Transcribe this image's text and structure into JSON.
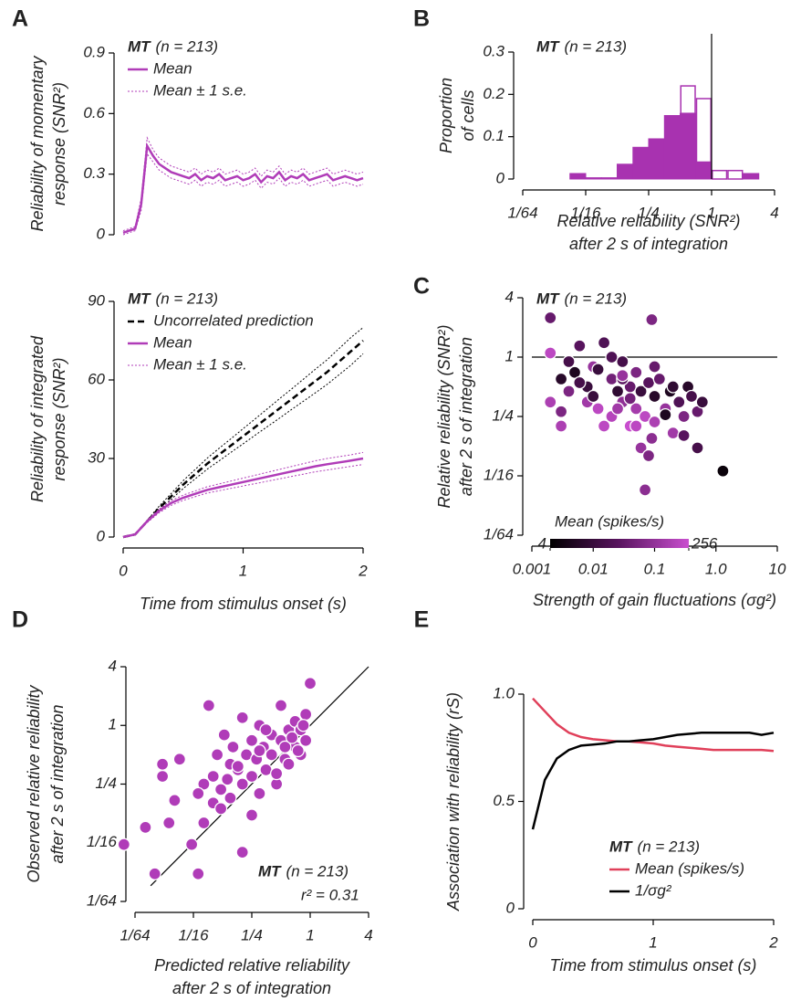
{
  "chart_data": [
    {
      "type": "line",
      "panel": "A",
      "group": "MT",
      "n_label": "(n = 213)",
      "y_label": [
        "Reliability of momentary",
        "response (SNR²)"
      ],
      "xlim": [
        0,
        2
      ],
      "ylim": [
        0,
        0.9
      ],
      "yticks": [
        0,
        0.3,
        0.6,
        0.9
      ],
      "x": [
        0,
        0.05,
        0.1,
        0.15,
        0.2,
        0.25,
        0.3,
        0.35,
        0.4,
        0.45,
        0.5,
        0.55,
        0.6,
        0.65,
        0.7,
        0.75,
        0.8,
        0.85,
        0.9,
        0.95,
        1,
        1.05,
        1.1,
        1.15,
        1.2,
        1.25,
        1.3,
        1.35,
        1.4,
        1.45,
        1.5,
        1.55,
        1.6,
        1.65,
        1.7,
        1.75,
        1.8,
        1.85,
        1.9,
        1.95,
        2
      ],
      "series": [
        {
          "name": "Mean",
          "color": "#b03cb8",
          "linestyle": "solid",
          "values": [
            0.01,
            0.02,
            0.03,
            0.15,
            0.44,
            0.39,
            0.35,
            0.33,
            0.31,
            0.3,
            0.29,
            0.28,
            0.3,
            0.27,
            0.29,
            0.28,
            0.3,
            0.27,
            0.28,
            0.29,
            0.27,
            0.28,
            0.3,
            0.26,
            0.29,
            0.28,
            0.31,
            0.27,
            0.29,
            0.28,
            0.3,
            0.27,
            0.28,
            0.29,
            0.3,
            0.27,
            0.28,
            0.29,
            0.28,
            0.27,
            0.28
          ]
        },
        {
          "name": "Mean ± 1 s.e.",
          "color": "#b03cb8",
          "linestyle": "dotted",
          "lower": [
            0.0,
            0.01,
            0.02,
            0.12,
            0.4,
            0.36,
            0.32,
            0.3,
            0.28,
            0.27,
            0.26,
            0.25,
            0.27,
            0.24,
            0.26,
            0.25,
            0.27,
            0.24,
            0.25,
            0.26,
            0.24,
            0.25,
            0.27,
            0.23,
            0.26,
            0.25,
            0.28,
            0.24,
            0.26,
            0.25,
            0.27,
            0.24,
            0.25,
            0.26,
            0.27,
            0.24,
            0.25,
            0.26,
            0.25,
            0.24,
            0.25
          ],
          "upper": [
            0.02,
            0.03,
            0.04,
            0.18,
            0.48,
            0.42,
            0.38,
            0.36,
            0.34,
            0.33,
            0.32,
            0.31,
            0.33,
            0.3,
            0.32,
            0.31,
            0.33,
            0.3,
            0.31,
            0.32,
            0.3,
            0.31,
            0.33,
            0.29,
            0.32,
            0.31,
            0.34,
            0.3,
            0.32,
            0.31,
            0.33,
            0.3,
            0.31,
            0.32,
            0.33,
            0.3,
            0.31,
            0.32,
            0.31,
            0.3,
            0.31
          ]
        }
      ]
    },
    {
      "type": "line",
      "group": "MT",
      "n_label": "(n = 213)",
      "y_label": [
        "Reliability of integrated",
        "response (SNR²)"
      ],
      "x_label": [
        "Time from stimulus onset (s)"
      ],
      "xlim": [
        0,
        2
      ],
      "ylim": [
        0,
        90
      ],
      "xticks": [
        0,
        1,
        2
      ],
      "yticks": [
        0,
        30,
        60,
        90
      ],
      "x": [
        0,
        0.1,
        0.2,
        0.3,
        0.4,
        0.5,
        0.6,
        0.7,
        0.8,
        0.9,
        1,
        1.1,
        1.2,
        1.3,
        1.4,
        1.5,
        1.6,
        1.7,
        1.8,
        1.9,
        2
      ],
      "series": [
        {
          "name": "Uncorrelated prediction",
          "color": "#000000",
          "linestyle": "dashed",
          "bound_linestyle": "dotted",
          "values": [
            0,
            1,
            6,
            11,
            15.5,
            20,
            24,
            28,
            31.5,
            35,
            38.5,
            42,
            45.5,
            49,
            52.5,
            56,
            59.5,
            63,
            67,
            71,
            75
          ],
          "lower": [
            0,
            0.9,
            5.6,
            10.2,
            14.4,
            18.5,
            22.2,
            25.9,
            29.1,
            32.4,
            35.6,
            38.9,
            42.1,
            45.3,
            48.6,
            51.8,
            55,
            58.3,
            62,
            65.7,
            70
          ],
          "upper": [
            0,
            1.1,
            6.4,
            11.8,
            16.6,
            21.5,
            25.8,
            30.1,
            33.9,
            37.6,
            41.4,
            45.1,
            48.9,
            52.7,
            56.4,
            60.2,
            64,
            67.7,
            72,
            76.3,
            80
          ]
        },
        {
          "name": "Mean",
          "color": "#b03cb8",
          "linestyle": "solid",
          "values": [
            0,
            1,
            6,
            10,
            13,
            15,
            16.5,
            18,
            19,
            20,
            21,
            22,
            23,
            24,
            25,
            26,
            27,
            27.8,
            28.5,
            29.2,
            30
          ]
        },
        {
          "name": "Mean ± 1 s.e.",
          "color": "#b03cb8",
          "linestyle": "dotted",
          "lower": [
            0,
            0.9,
            5.5,
            9.3,
            12.1,
            14,
            15.4,
            16.8,
            17.7,
            18.6,
            19.5,
            20.4,
            21.3,
            22.2,
            23.1,
            24,
            24.9,
            25.6,
            26.3,
            27,
            27.7
          ],
          "upper": [
            0,
            1.1,
            6.5,
            10.7,
            13.9,
            16,
            17.6,
            19.2,
            20.3,
            21.4,
            22.5,
            23.6,
            24.7,
            25.8,
            26.9,
            28,
            29.1,
            30,
            30.7,
            31.4,
            32.3
          ]
        }
      ]
    },
    {
      "type": "histogram",
      "panel": "B",
      "group": "MT",
      "n_label": "(n = 213)",
      "y_label": [
        "Proportion",
        "of cells"
      ],
      "x_label": [
        "Relative reliability (SNR²)",
        "after 2 s of integration"
      ],
      "xscale": "log",
      "xlim": [
        0.015625,
        4
      ],
      "ylim": [
        0,
        0.3
      ],
      "xticks": [
        {
          "value": 0.015625,
          "label": "1/64"
        },
        {
          "value": 0.0625,
          "label": "1/16"
        },
        {
          "value": 0.25,
          "label": "1/4"
        },
        1,
        4
      ],
      "yticks": [
        0,
        0.1,
        0.2,
        0.3
      ],
      "color": "#a832b0",
      "vline": 1,
      "bins": [
        0.0442,
        0.0625,
        0.0884,
        0.125,
        0.177,
        0.25,
        0.354,
        0.5,
        0.707,
        1,
        1.414,
        2,
        2.828,
        4
      ],
      "values": [
        0.013,
        0.003,
        0.003,
        0.035,
        0.075,
        0.095,
        0.15,
        0.155,
        0.04,
        0,
        0,
        0.013,
        0
      ],
      "open_values": [
        0,
        0,
        0,
        0,
        0,
        0,
        0,
        0.065,
        0.15,
        0.02,
        0.02,
        0,
        0
      ]
    },
    {
      "type": "scatter",
      "panel": "C",
      "group": "MT",
      "n_label": "(n = 213)",
      "y_label": [
        "Relative reliability (SNR²)",
        "after 2 s of integration"
      ],
      "x_label": [
        "Strength of gain fluctuations (σg²)"
      ],
      "xscale": "log",
      "yscale": "log",
      "xlim": [
        0.001,
        10
      ],
      "ylim": [
        0.015625,
        4
      ],
      "xticks": [
        0.001,
        0.01,
        0.1,
        {
          "value": 1,
          "label": "1.0"
        },
        10
      ],
      "yticks": [
        {
          "value": 0.015625,
          "label": "1/64"
        },
        {
          "value": 0.0625,
          "label": "1/16"
        },
        {
          "value": 0.25,
          "label": "1/4"
        },
        1,
        4
      ],
      "hline": 1,
      "colorbar_label": "Mean (spikes/s)",
      "clim": [
        4,
        256
      ],
      "cticks": [
        4,
        256
      ],
      "colormap": [
        "#000000",
        "#5a1460",
        "#c94fcf"
      ],
      "x": [
        0.002,
        0.002,
        0.003,
        0.002,
        0.004,
        0.003,
        0.005,
        0.006,
        0.008,
        0.01,
        0.012,
        0.015,
        0.02,
        0.02,
        0.025,
        0.03,
        0.03,
        0.04,
        0.04,
        0.05,
        0.05,
        0.06,
        0.07,
        0.08,
        0.09,
        0.1,
        0.1,
        0.12,
        0.15,
        0.18,
        0.2,
        0.25,
        0.3,
        0.35,
        0.4,
        0.5,
        0.6,
        1.3,
        0.004,
        0.008,
        0.015,
        0.03,
        0.06,
        0.1,
        0.2,
        0.006,
        0.012,
        0.025,
        0.05,
        0.08,
        0.15,
        0.3,
        0.02,
        0.04,
        0.07,
        0.003,
        0.01,
        0.5,
        0.09,
        0.03
      ],
      "values": [
        2.5,
        1.1,
        0.6,
        0.35,
        0.9,
        0.28,
        0.7,
        1.3,
        0.5,
        0.8,
        0.3,
        1.4,
        0.6,
        0.25,
        0.45,
        0.9,
        0.35,
        0.5,
        0.2,
        0.7,
        0.3,
        0.45,
        0.25,
        0.55,
        0.15,
        0.4,
        0.22,
        0.6,
        0.3,
        0.45,
        0.17,
        0.35,
        0.25,
        0.5,
        0.4,
        0.28,
        0.35,
        0.07,
        0.45,
        0.35,
        0.2,
        0.6,
        0.12,
        0.8,
        0.5,
        0.55,
        0.75,
        0.3,
        0.2,
        0.1,
        0.26,
        0.16,
        1.0,
        0.38,
        0.045,
        0.2,
        0.4,
        0.12,
        2.4,
        0.65
      ],
      "mean_rate": [
        40,
        200,
        10,
        150,
        20,
        60,
        8,
        30,
        15,
        100,
        200,
        25,
        50,
        180,
        12,
        20,
        90,
        40,
        250,
        60,
        130,
        15,
        200,
        30,
        80,
        10,
        150,
        40,
        100,
        8,
        120,
        25,
        60,
        10,
        20,
        40,
        15,
        5,
        60,
        120,
        200,
        30,
        100,
        40,
        12,
        20,
        15,
        120,
        200,
        60,
        8,
        30,
        25,
        50,
        80,
        150,
        15,
        20,
        60,
        100
      ]
    },
    {
      "type": "scatter",
      "panel": "D",
      "group": "MT",
      "n_label": "(n = 213)",
      "annotation": "r² = 0.31",
      "y_label": [
        "Observed relative reliability",
        "after 2 s of integration"
      ],
      "x_label": [
        "Predicted relative reliability",
        "after 2 s of integration"
      ],
      "xscale": "log",
      "yscale": "log",
      "xlim": [
        0.015625,
        4
      ],
      "ylim": [
        0.015625,
        4
      ],
      "xticks": [
        {
          "value": 0.015625,
          "label": "1/64"
        },
        {
          "value": 0.0625,
          "label": "1/16"
        },
        {
          "value": 0.25,
          "label": "1/4"
        },
        1,
        4
      ],
      "yticks": [
        {
          "value": 0.015625,
          "label": "1/64"
        },
        {
          "value": 0.0625,
          "label": "1/16"
        },
        {
          "value": 0.25,
          "label": "1/4"
        },
        1,
        4
      ],
      "identity_line": true,
      "color": "#b03cb8",
      "x": [
        0.012,
        0.02,
        0.025,
        0.03,
        0.03,
        0.035,
        0.04,
        0.045,
        0.06,
        0.07,
        0.08,
        0.08,
        0.09,
        0.1,
        0.1,
        0.11,
        0.12,
        0.13,
        0.14,
        0.15,
        0.16,
        0.18,
        0.2,
        0.2,
        0.22,
        0.25,
        0.25,
        0.28,
        0.3,
        0.3,
        0.33,
        0.35,
        0.4,
        0.4,
        0.45,
        0.5,
        0.5,
        0.55,
        0.6,
        0.6,
        0.7,
        0.7,
        0.8,
        0.8,
        0.9,
        0.9,
        1.0,
        0.12,
        0.15,
        0.2,
        0.25,
        0.3,
        0.35,
        0.45,
        0.55,
        0.65,
        0.75,
        0.85,
        0.07,
        0.18
      ],
      "values": [
        0.06,
        0.09,
        0.03,
        0.3,
        0.4,
        0.1,
        0.17,
        0.45,
        0.06,
        0.03,
        0.1,
        0.25,
        1.6,
        0.3,
        0.16,
        0.5,
        0.22,
        0.8,
        0.28,
        0.4,
        0.6,
        0.35,
        0.25,
        1.2,
        0.5,
        0.3,
        0.7,
        0.45,
        0.2,
        1.0,
        0.6,
        0.35,
        0.5,
        0.8,
        0.25,
        0.7,
        1.6,
        0.45,
        0.9,
        0.4,
        0.6,
        1.1,
        0.5,
        0.9,
        0.7,
        1.3,
        2.7,
        0.14,
        0.18,
        0.05,
        0.12,
        0.55,
        0.9,
        0.32,
        0.6,
        0.75,
        0.55,
        1.0,
        0.2,
        0.38
      ]
    },
    {
      "type": "line",
      "panel": "E",
      "group": "MT",
      "n_label": "(n = 213)",
      "y_label": [
        "Association with reliability (rS)"
      ],
      "x_label": [
        "Time from stimulus onset (s)"
      ],
      "xlim": [
        0,
        2
      ],
      "ylim": [
        0,
        1
      ],
      "xticks": [
        0,
        1,
        2
      ],
      "yticks": [
        0,
        0.5,
        {
          "value": 1,
          "label": "1.0"
        }
      ],
      "x": [
        0,
        0.1,
        0.2,
        0.3,
        0.4,
        0.5,
        0.6,
        0.7,
        0.8,
        0.9,
        1,
        1.1,
        1.2,
        1.3,
        1.4,
        1.5,
        1.6,
        1.7,
        1.8,
        1.9,
        2
      ],
      "series": [
        {
          "name": "Mean (spikes/s)",
          "color": "#e0405a",
          "linestyle": "solid",
          "values": [
            0.98,
            0.92,
            0.86,
            0.82,
            0.8,
            0.79,
            0.785,
            0.78,
            0.78,
            0.775,
            0.77,
            0.76,
            0.755,
            0.75,
            0.745,
            0.74,
            0.74,
            0.74,
            0.74,
            0.74,
            0.735
          ]
        },
        {
          "name": "1/σg²",
          "color": "#000000",
          "linestyle": "solid",
          "values": [
            0.37,
            0.6,
            0.7,
            0.74,
            0.76,
            0.765,
            0.77,
            0.78,
            0.78,
            0.785,
            0.79,
            0.8,
            0.81,
            0.815,
            0.82,
            0.82,
            0.82,
            0.82,
            0.82,
            0.81,
            0.82
          ]
        }
      ]
    }
  ]
}
